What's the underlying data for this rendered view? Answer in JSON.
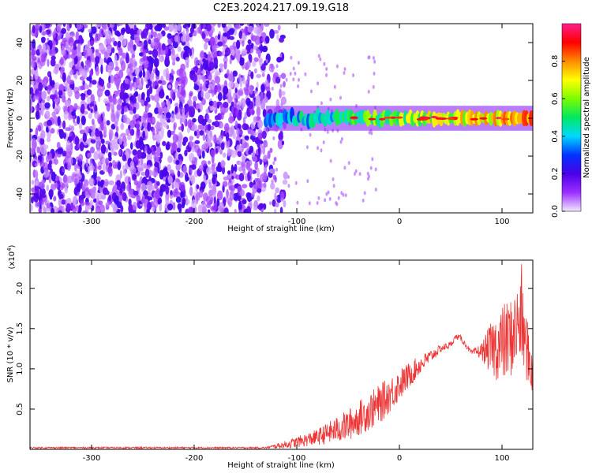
{
  "title": "C2E3.2024.217.09.19.G18",
  "chart_data": [
    {
      "type": "heatmap",
      "name": "spectrogram",
      "xlabel": "Height of straight line (km)",
      "ylabel": "Frequency (Hz)",
      "xlim": [
        -360,
        130
      ],
      "ylim": [
        -50,
        50
      ],
      "x_ticks": [
        -300,
        -200,
        -100,
        0,
        100
      ],
      "y_ticks": [
        -40,
        -20,
        0,
        20,
        40
      ],
      "colorbar": {
        "label": "Normalized spectral amplitude",
        "range": [
          0.0,
          1.0
        ],
        "ticks": [
          0.0,
          0.2,
          0.4,
          0.6,
          0.8
        ],
        "colors": [
          "#f2e9ff",
          "#9b30ff",
          "#4b00e8",
          "#0033ff",
          "#00d8ff",
          "#00e860",
          "#7cfc00",
          "#ffff00",
          "#ff8c00",
          "#ff0000",
          "#ff1e8c"
        ]
      },
      "regions": [
        {
          "x_range": [
            -360,
            -130
          ],
          "freq_range": [
            -50,
            50
          ],
          "amplitude": "0.05-0.2",
          "description": "broadband noise"
        },
        {
          "x_range": [
            -130,
            130
          ],
          "freq_center": 0,
          "freq_halfwidth": 3,
          "amplitude": "0.3-1.0",
          "description": "signal band"
        }
      ]
    },
    {
      "type": "line",
      "name": "snr",
      "xlabel": "Height of straight line (km)",
      "ylabel": "SNR (10 * v/v)",
      "multiplier_label": "(x10",
      "multiplier_exp": "4",
      "multiplier_close": ")",
      "xlim": [
        -360,
        130
      ],
      "ylim": [
        0,
        2.35
      ],
      "x_ticks": [
        -300,
        -200,
        -100,
        0,
        100
      ],
      "y_ticks": [
        0.5,
        1.0,
        1.5,
        2.0
      ],
      "color": "#ee3333",
      "envelope": {
        "x": [
          -360,
          -130,
          -110,
          -80,
          -50,
          -20,
          0,
          20,
          40,
          50,
          55,
          60,
          70,
          80,
          90,
          100,
          110,
          118,
          125,
          130
        ],
        "mean": [
          0.02,
          0.02,
          0.06,
          0.15,
          0.3,
          0.55,
          0.8,
          1.05,
          1.25,
          1.3,
          1.4,
          1.38,
          1.2,
          1.22,
          1.25,
          1.3,
          1.4,
          1.6,
          1.2,
          0.95
        ],
        "noise": [
          0.01,
          0.01,
          0.05,
          0.1,
          0.2,
          0.25,
          0.2,
          0.12,
          0.05,
          0.04,
          0.03,
          0.04,
          0.03,
          0.1,
          0.35,
          0.5,
          0.5,
          0.55,
          0.4,
          0.3
        ]
      },
      "peak": {
        "x": 119,
        "y": 2.3
      }
    }
  ]
}
